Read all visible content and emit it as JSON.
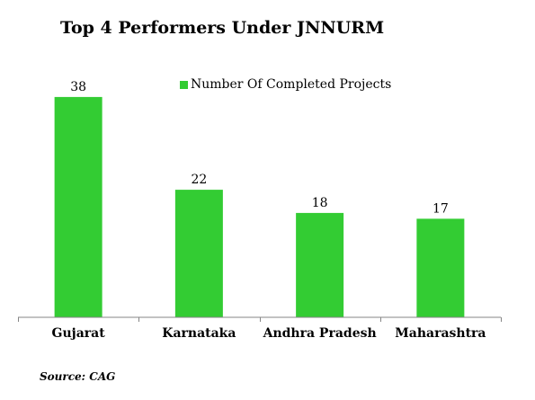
{
  "colors": {
    "bar": "#33cc33",
    "axis": "#868686"
  },
  "footer": {
    "source": "Source: CAG"
  },
  "chart_data": {
    "type": "bar",
    "title": "Top 4 Performers Under JNNURM",
    "categories": [
      "Gujarat",
      "Karnataka",
      "Andhra Pradesh",
      "Maharashtra"
    ],
    "series": [
      {
        "name": "Number Of Completed Projects",
        "values": [
          38,
          22,
          18,
          17
        ]
      }
    ],
    "data_labels": [
      "38",
      "22",
      "18",
      "17"
    ],
    "ylim": [
      0,
      40
    ],
    "grid": false,
    "legend_position": "top-center",
    "xlabel": "",
    "ylabel": ""
  }
}
